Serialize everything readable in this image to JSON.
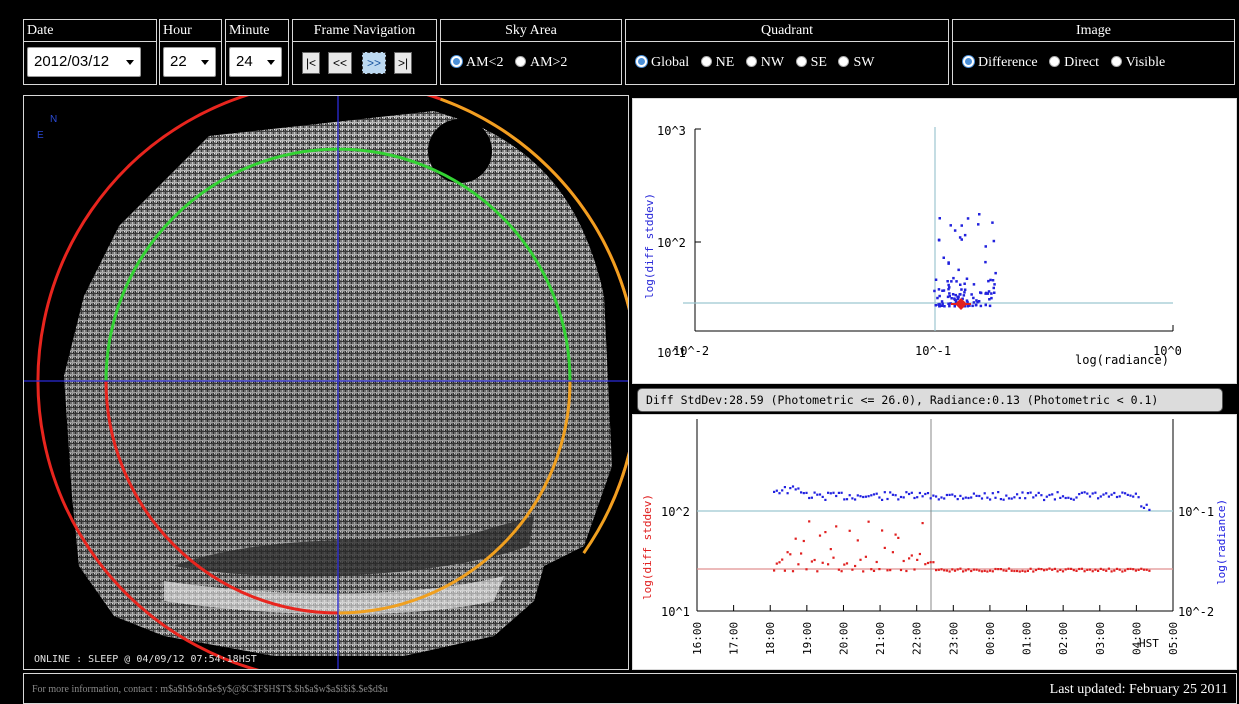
{
  "controls": {
    "date": {
      "label": "Date",
      "value": "2012/03/12"
    },
    "hour": {
      "label": "Hour",
      "value": "22"
    },
    "minute": {
      "label": "Minute",
      "value": "24"
    },
    "frame_navigation": {
      "label": "Frame Navigation",
      "buttons": [
        "|<",
        "<<",
        ">>",
        ">|"
      ]
    },
    "sky_area": {
      "label": "Sky Area",
      "options": [
        "AM<2",
        "AM>2"
      ],
      "selected": "AM<2"
    },
    "quadrant": {
      "label": "Quadrant",
      "options": [
        "Global",
        "NE",
        "NW",
        "SE",
        "SW"
      ],
      "selected": "Global"
    },
    "image": {
      "label": "Image",
      "options": [
        "Difference",
        "Direct",
        "Visible"
      ],
      "selected": "Difference"
    }
  },
  "sky_image": {
    "compass": [
      "E",
      "N"
    ],
    "status": "ONLINE : SLEEP @ 04/09/12 07:54:18HST",
    "circle_colors": {
      "outer_red": "#e8251e",
      "orange": "#f0a020",
      "green": "#33d233",
      "crosshair": "#2b2bd8"
    }
  },
  "scatter": {
    "ylabel": "log(diff stddev)",
    "xlabel": "log(radiance)",
    "y_ticks": [
      "10^3",
      "10^2"
    ],
    "x_ticks": [
      "10^1",
      "10^-2",
      "10^-1",
      "10^0"
    ],
    "threshold_x": 0.1,
    "threshold_y": 26.0
  },
  "tooltip": {
    "text": "Diff StdDev:28.59 (Photometric <= 26.0),  Radiance:0.13 (Photometric < 0.1)"
  },
  "timeseries": {
    "ylabel_left": "log(diff stddev)",
    "ylabel_right": "log(radiance)",
    "y_ticks_left": [
      "10^2",
      "10^1"
    ],
    "y_ticks_right": [
      "10^-1",
      "10^-2"
    ],
    "x_ticks": [
      "16:00",
      "17:00",
      "18:00",
      "19:00",
      "20:00",
      "21:00",
      "22:00",
      "23:00",
      "00:00",
      "01:00",
      "02:00",
      "03:00",
      "04:00",
      "05:00"
    ],
    "x_unit": "HST",
    "cursor_time": "22:24",
    "colors": {
      "left": "#e02020",
      "right": "#2020e0"
    }
  },
  "footer": {
    "contact": "For more information, contact : m$a$h$o$n$e$y$@$C$F$H$T$.$h$a$w$a$i$i$.$e$d$u",
    "updated": "Last updated: February 25 2011"
  }
}
